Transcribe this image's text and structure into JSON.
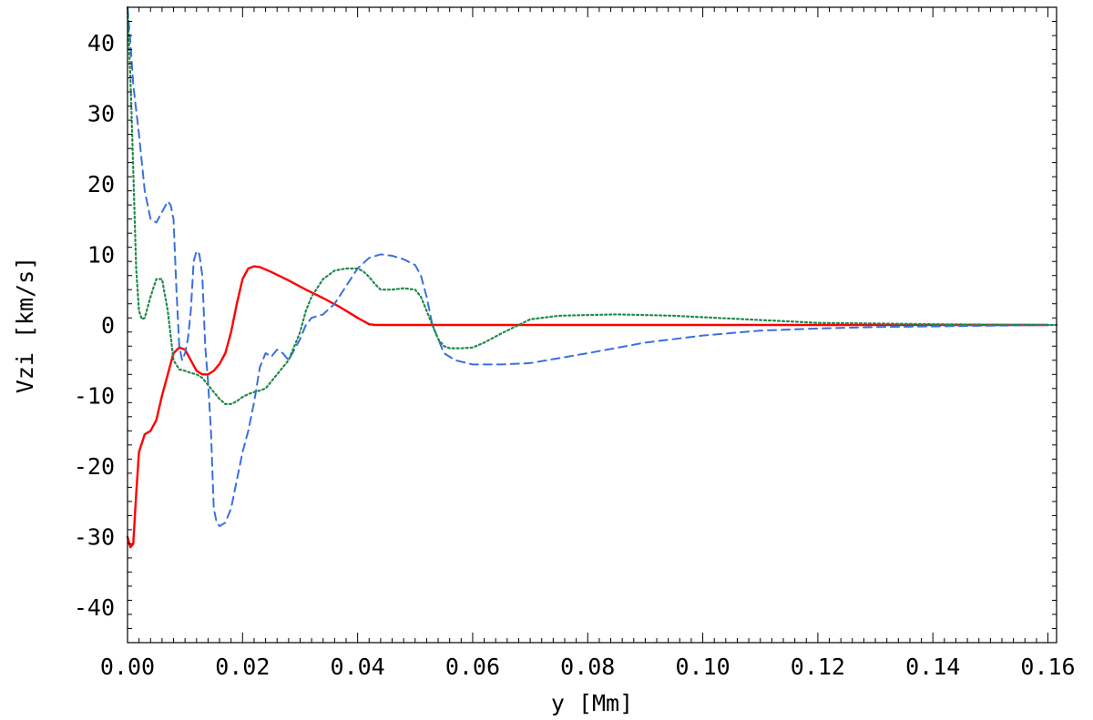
{
  "chart_data": {
    "type": "line",
    "xlabel": "y [Mm]",
    "ylabel": "Vzi [km/s]",
    "xlim": [
      0,
      0.1615
    ],
    "ylim": [
      -45,
      45
    ],
    "x_ticks": [
      0,
      0.02,
      0.04,
      0.06,
      0.08,
      0.1,
      0.12,
      0.14,
      0.16
    ],
    "x_tick_labels": [
      "0.00",
      "0.02",
      "0.04",
      "0.06",
      "0.08",
      "0.10",
      "0.12",
      "0.14",
      "0.16"
    ],
    "y_ticks": [
      -40,
      -30,
      -20,
      -10,
      0,
      10,
      20,
      30,
      40
    ],
    "y_tick_labels": [
      "-40",
      "-30",
      "-20",
      "-10",
      "0",
      "10",
      "20",
      "30",
      "40"
    ],
    "grid": false,
    "series": [
      {
        "color": "#ff0000",
        "style": "solid",
        "x": [
          0.0,
          0.0005,
          0.001,
          0.0015,
          0.002,
          0.003,
          0.004,
          0.005,
          0.006,
          0.007,
          0.008,
          0.009,
          0.01,
          0.011,
          0.012,
          0.013,
          0.014,
          0.015,
          0.016,
          0.017,
          0.018,
          0.019,
          0.02,
          0.021,
          0.022,
          0.023,
          0.025,
          0.028,
          0.031,
          0.034,
          0.037,
          0.04,
          0.042,
          0.043,
          0.05,
          0.07,
          0.1,
          0.13,
          0.16
        ],
        "y": [
          -30,
          -31.5,
          -31,
          -24,
          -18,
          -15.5,
          -15,
          -13.5,
          -10,
          -7,
          -4,
          -3.2,
          -3.5,
          -5,
          -6.5,
          -7,
          -7,
          -6.5,
          -5.5,
          -4,
          -1,
          3,
          6.5,
          8,
          8.3,
          8.2,
          7.5,
          6.3,
          5,
          3.8,
          2.5,
          1,
          0.1,
          0,
          0,
          0,
          0,
          0,
          0
        ]
      },
      {
        "color": "#3a6fe0",
        "style": "dashed",
        "x": [
          0.0,
          0.0005,
          0.001,
          0.002,
          0.003,
          0.004,
          0.005,
          0.006,
          0.007,
          0.0075,
          0.008,
          0.0085,
          0.009,
          0.0095,
          0.01,
          0.0105,
          0.011,
          0.0115,
          0.012,
          0.0125,
          0.013,
          0.0135,
          0.014,
          0.0145,
          0.015,
          0.0155,
          0.016,
          0.017,
          0.018,
          0.019,
          0.02,
          0.021,
          0.022,
          0.023,
          0.024,
          0.025,
          0.026,
          0.027,
          0.028,
          0.029,
          0.03,
          0.031,
          0.032,
          0.034,
          0.036,
          0.038,
          0.04,
          0.042,
          0.044,
          0.046,
          0.048,
          0.05,
          0.051,
          0.052,
          0.053,
          0.054,
          0.055,
          0.057,
          0.06,
          0.065,
          0.07,
          0.08,
          0.09,
          0.1,
          0.11,
          0.12,
          0.13,
          0.14,
          0.15,
          0.1615
        ],
        "y": [
          45,
          40,
          34,
          27,
          19,
          15,
          14.5,
          16,
          17.5,
          17,
          15,
          5,
          -3,
          -5,
          -4,
          -2,
          2,
          9,
          10.5,
          10,
          7,
          -3,
          -8,
          -15,
          -26,
          -28,
          -28.5,
          -28,
          -26,
          -22,
          -18,
          -15,
          -11,
          -6,
          -4,
          -4.5,
          -3.5,
          -4,
          -5,
          -3.5,
          -2,
          0,
          1,
          1.5,
          3,
          5.5,
          8,
          9.5,
          10,
          9.8,
          9.3,
          8.5,
          7,
          4,
          0,
          -2,
          -4,
          -5,
          -5.6,
          -5.6,
          -5.4,
          -4,
          -2.5,
          -1.5,
          -0.8,
          -0.5,
          -0.3,
          -0.2,
          -0.1,
          0
        ]
      },
      {
        "color": "#1f8a4c",
        "style": "dotted",
        "x": [
          0.0,
          0.0005,
          0.001,
          0.0015,
          0.002,
          0.0025,
          0.003,
          0.004,
          0.005,
          0.006,
          0.007,
          0.008,
          0.009,
          0.01,
          0.011,
          0.012,
          0.013,
          0.014,
          0.015,
          0.016,
          0.017,
          0.018,
          0.019,
          0.02,
          0.021,
          0.022,
          0.023,
          0.024,
          0.025,
          0.026,
          0.027,
          0.028,
          0.029,
          0.03,
          0.031,
          0.032,
          0.034,
          0.036,
          0.038,
          0.04,
          0.041,
          0.042,
          0.043,
          0.044,
          0.046,
          0.048,
          0.05,
          0.051,
          0.052,
          0.053,
          0.054,
          0.055,
          0.056,
          0.058,
          0.06,
          0.062,
          0.065,
          0.068,
          0.07,
          0.075,
          0.08,
          0.085,
          0.09,
          0.095,
          0.1,
          0.105,
          0.11,
          0.115,
          0.12,
          0.13,
          0.14,
          0.15,
          0.1615
        ],
        "y": [
          45,
          35,
          22,
          8,
          2,
          0.8,
          1,
          4,
          6.5,
          6.5,
          2,
          -5,
          -6.3,
          -6.5,
          -6.8,
          -7,
          -7.5,
          -8.5,
          -9.5,
          -10.5,
          -11.2,
          -11.2,
          -10.8,
          -10.2,
          -9.8,
          -9.5,
          -9.3,
          -9,
          -8,
          -7,
          -6,
          -5,
          -3,
          -1,
          2,
          4,
          6.5,
          7.7,
          8,
          8,
          7.6,
          6.8,
          5.8,
          5,
          5,
          5.2,
          5,
          4,
          2,
          0,
          -2,
          -3,
          -3.3,
          -3.3,
          -3.2,
          -2.5,
          -1.2,
          0,
          0.8,
          1.3,
          1.4,
          1.5,
          1.4,
          1.3,
          1.1,
          0.9,
          0.7,
          0.5,
          0.3,
          0.2,
          0.1,
          0.05,
          0
        ]
      }
    ]
  }
}
